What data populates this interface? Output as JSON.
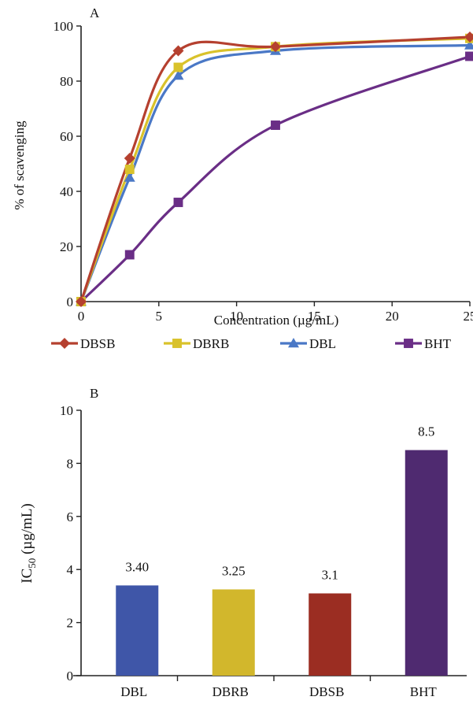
{
  "chart_data": [
    {
      "type": "line",
      "panel_label": "A",
      "xlabel": "Concentration (µg/mL)",
      "ylabel": "% of scavenging",
      "xlim": [
        0,
        25
      ],
      "ylim": [
        0,
        100
      ],
      "x_ticks": [
        0,
        5,
        10,
        15,
        20,
        25
      ],
      "y_ticks": [
        0,
        20,
        40,
        60,
        80,
        100
      ],
      "legend_position": "bottom",
      "series": [
        {
          "name": "DBSB",
          "color": "#b5402f",
          "marker": "diamond",
          "x": [
            0,
            3.125,
            6.25,
            12.5,
            25
          ],
          "y": [
            0,
            52,
            91,
            92.5,
            96
          ]
        },
        {
          "name": "DBRB",
          "color": "#d9c22b",
          "marker": "square",
          "x": [
            0,
            3.125,
            6.25,
            12.5,
            25
          ],
          "y": [
            0,
            48,
            85,
            92.5,
            95.5
          ]
        },
        {
          "name": "DBL",
          "color": "#4a78c6",
          "marker": "triangle",
          "x": [
            0,
            3.125,
            6.25,
            12.5,
            25
          ],
          "y": [
            0,
            45,
            82,
            91,
            93
          ]
        },
        {
          "name": "BHT",
          "color": "#6a2e86",
          "marker": "square",
          "x": [
            0,
            3.125,
            6.25,
            12.5,
            25
          ],
          "y": [
            0,
            17,
            36,
            64,
            89
          ]
        }
      ]
    },
    {
      "type": "bar",
      "panel_label": "B",
      "ylabel_main": "IC",
      "ylabel_sub": "50",
      "ylabel_unit": " (µg/mL)",
      "ylim": [
        0,
        10
      ],
      "y_ticks": [
        0,
        2,
        4,
        6,
        8,
        10
      ],
      "categories": [
        "DBL",
        "DBRB",
        "DBSB",
        "BHT"
      ],
      "values": [
        3.4,
        3.25,
        3.1,
        8.5
      ],
      "value_labels": [
        "3.40",
        "3.25",
        "3.1",
        "8.5"
      ],
      "colors": [
        "#3f56a8",
        "#d2b72c",
        "#9b2d22",
        "#4f2a70"
      ]
    }
  ]
}
